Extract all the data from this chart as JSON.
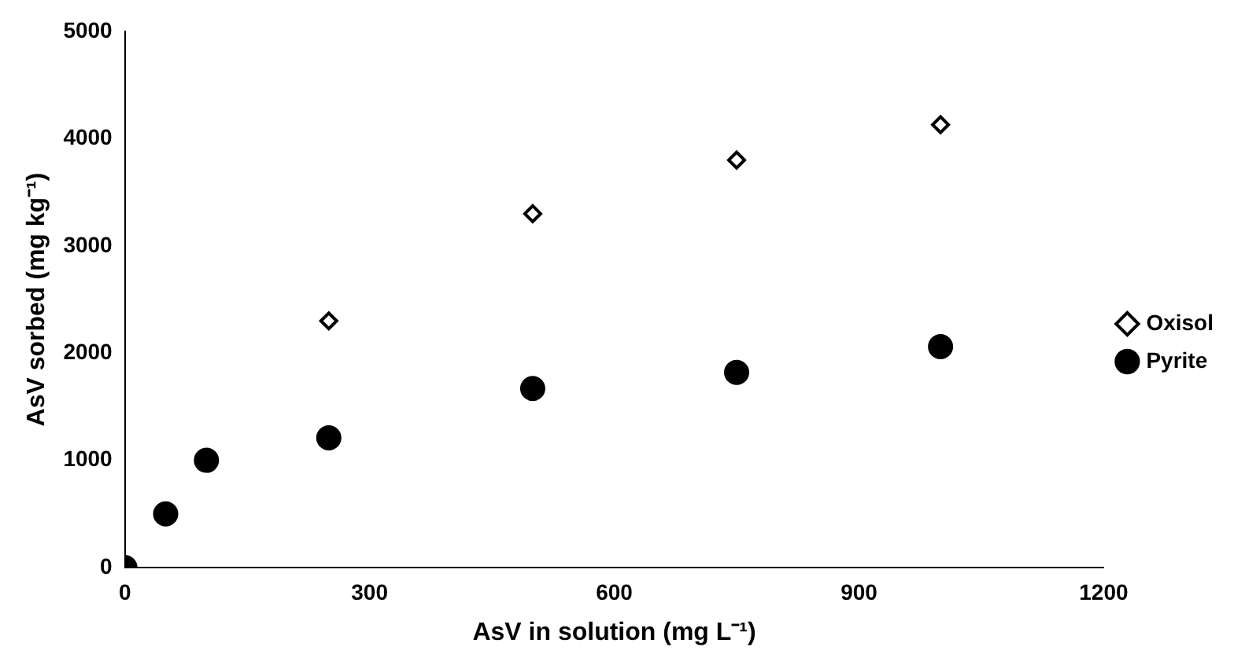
{
  "chart_data": {
    "type": "scatter",
    "xlabel": "AsV in solution (mg L⁻¹)",
    "ylabel": "AsV sorbed (mg kg⁻¹)",
    "xlim": [
      0,
      1200
    ],
    "xticks": [
      0,
      300,
      600,
      900,
      1200
    ],
    "ylim": [
      0,
      5000
    ],
    "yticks": [
      0,
      1000,
      2000,
      3000,
      4000,
      5000
    ],
    "grid": false,
    "legend": "right",
    "series": [
      {
        "name": "Oxisol",
        "color": "#000000",
        "marker": "diamond",
        "x": [
          250,
          500,
          750,
          1000
        ],
        "values": [
          2300,
          3300,
          3800,
          4130
        ]
      },
      {
        "name": "Pyrite",
        "color": "#000000",
        "marker": "circle",
        "x": [
          0,
          50,
          100,
          250,
          500,
          750,
          1000
        ],
        "values": [
          0,
          500,
          1000,
          1210,
          1670,
          1820,
          2060
        ]
      }
    ]
  }
}
